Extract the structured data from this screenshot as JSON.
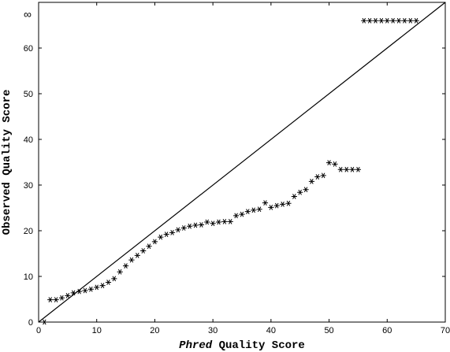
{
  "chart_data": {
    "type": "scatter",
    "xlabel_em": "Phred",
    "xlabel_rest": " Quality Score",
    "ylabel": "Observed Quality Score",
    "xlim": [
      0,
      70
    ],
    "ylim": [
      0,
      70
    ],
    "x_ticks": [
      0,
      10,
      20,
      30,
      40,
      50,
      60,
      70
    ],
    "x_tick_labels": [
      "0",
      "10",
      "20",
      "30",
      "40",
      "50",
      "60",
      "70"
    ],
    "y_ticks": [
      0,
      10,
      20,
      30,
      40,
      50,
      60
    ],
    "y_tick_labels": [
      "0",
      "10",
      "20",
      "30",
      "40",
      "50",
      "60"
    ],
    "y_top_label": "∞",
    "grid": false,
    "marker": "asterisk",
    "reference_line": {
      "x": [
        0,
        70
      ],
      "y": [
        0,
        70
      ]
    },
    "series": [
      {
        "x": [
          1,
          2,
          3,
          4,
          5,
          6,
          7,
          8,
          9,
          10,
          11,
          12,
          13,
          14,
          15,
          16,
          17,
          18,
          19,
          20,
          21,
          22,
          23,
          24,
          25,
          26,
          27,
          28,
          29,
          30,
          31,
          32,
          33,
          34,
          35,
          36,
          37,
          38,
          39,
          40,
          41,
          42,
          43,
          44,
          45,
          46,
          47,
          48,
          49,
          50,
          51,
          52,
          53,
          54,
          55,
          56,
          57,
          58,
          59,
          60,
          61,
          62,
          63,
          64,
          65
        ],
        "y": [
          0,
          4.9,
          4.9,
          5.3,
          5.8,
          6.4,
          6.7,
          6.9,
          7.2,
          7.6,
          8.0,
          8.7,
          9.5,
          11.0,
          12.3,
          13.6,
          14.6,
          15.6,
          16.6,
          17.6,
          18.6,
          19.2,
          19.6,
          20.2,
          20.6,
          21.0,
          21.2,
          21.3,
          21.9,
          21.6,
          21.9,
          22.0,
          22.0,
          23.3,
          23.6,
          24.2,
          24.5,
          24.7,
          26.1,
          25.1,
          25.5,
          25.8,
          26.0,
          27.5,
          28.4,
          29.0,
          30.8,
          31.8,
          32.1,
          34.9,
          34.6,
          33.4,
          33.4,
          33.4,
          33.4,
          66,
          66,
          66,
          66,
          66,
          66,
          66,
          66,
          66,
          66
        ]
      }
    ]
  }
}
